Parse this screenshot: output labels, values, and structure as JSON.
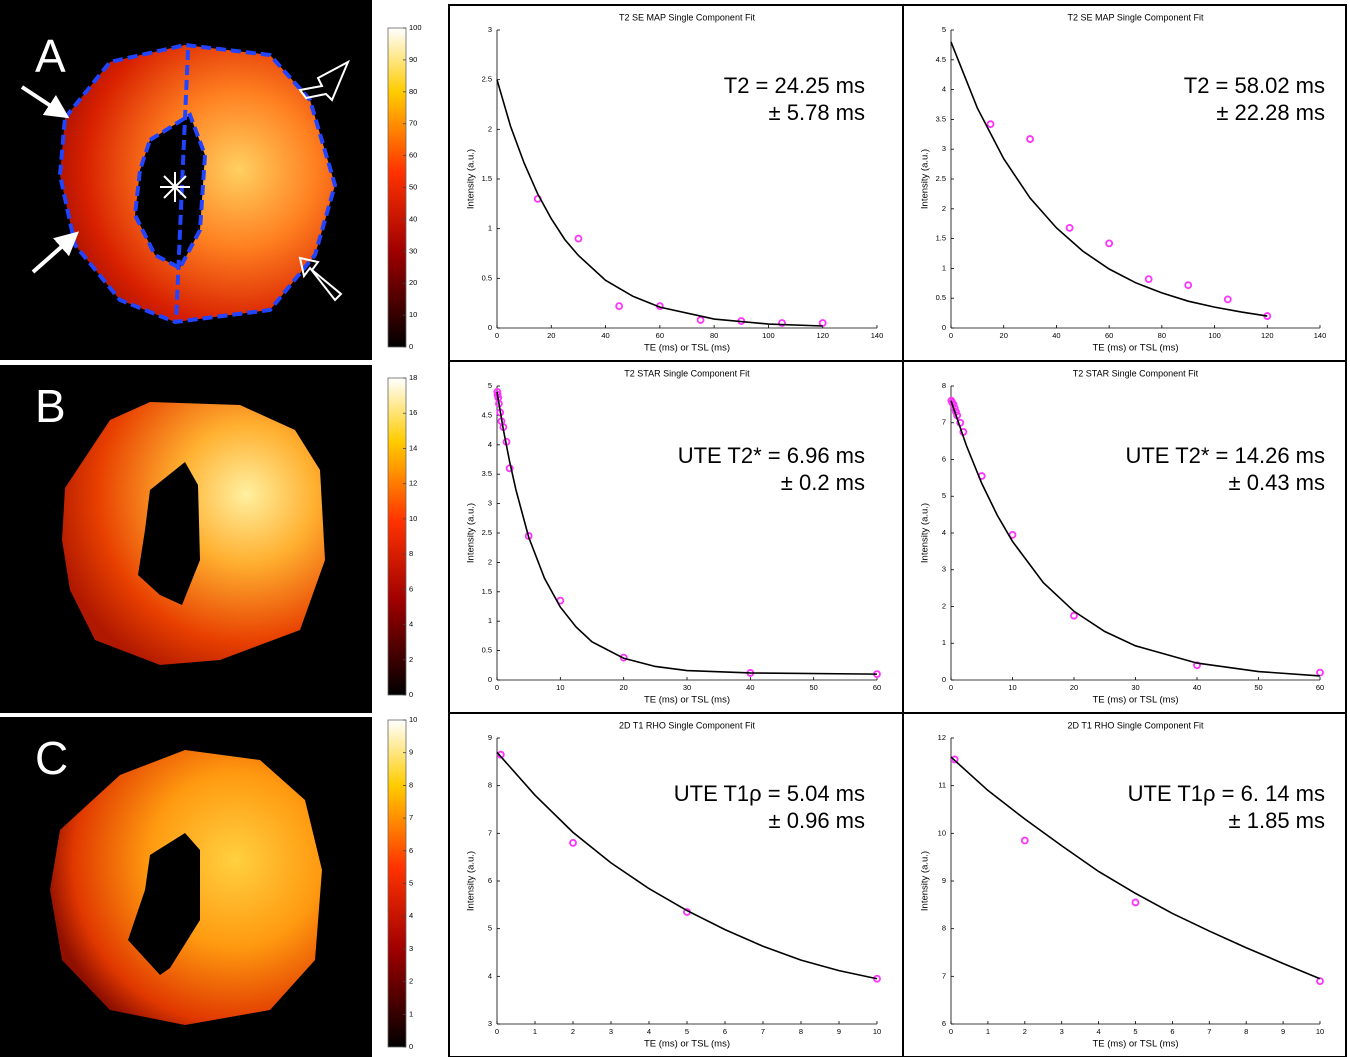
{
  "panels": [
    "A",
    "B",
    "C"
  ],
  "colorbars": [
    {
      "ylim": [
        0,
        100
      ],
      "yticks": [
        0,
        10,
        20,
        30,
        40,
        50,
        60,
        70,
        80,
        90,
        100
      ]
    },
    {
      "ylim": [
        0,
        18
      ],
      "yticks": [
        0,
        2,
        4,
        6,
        8,
        10,
        12,
        14,
        16,
        18
      ]
    },
    {
      "ylim": [
        0,
        10
      ],
      "yticks": [
        0,
        1,
        2,
        3,
        4,
        5,
        6,
        7,
        8,
        9,
        10
      ]
    }
  ],
  "chart_data": [
    {
      "type": "scatter",
      "title": "T2 SE MAP Single Component Fit",
      "x_label": "TE (ms) or TSL (ms)",
      "y_label": "Intensity (a.u.)",
      "annotations": [
        "T2 = 24.25 ms",
        "± 5.78 ms"
      ],
      "xlim": [
        0,
        140
      ],
      "xticks": [
        0,
        20,
        40,
        60,
        80,
        100,
        120,
        140
      ],
      "ylim": [
        0,
        3
      ],
      "yticks": [
        0,
        0.5,
        1,
        1.5,
        2,
        2.5,
        3
      ],
      "series": [
        {
          "color": "#ff33ff",
          "marker": "circle",
          "x": [
            15,
            30,
            45,
            60,
            75,
            90,
            105,
            120
          ],
          "values": [
            1.3,
            0.9,
            0.22,
            0.22,
            0.08,
            0.07,
            0.05,
            0.05
          ]
        },
        {
          "color": "#000000",
          "marker": "line",
          "x": [
            0,
            5,
            10,
            15,
            20,
            25,
            30,
            40,
            50,
            60,
            80,
            100,
            120
          ],
          "values": [
            2.5,
            2.03,
            1.66,
            1.35,
            1.1,
            0.89,
            0.73,
            0.48,
            0.32,
            0.21,
            0.09,
            0.04,
            0.02
          ]
        }
      ]
    },
    {
      "type": "scatter",
      "title": "T2 SE MAP Single Component Fit",
      "x_label": "TE (ms) or TSL (ms)",
      "y_label": "Intensity (a.u.)",
      "annotations": [
        "T2 = 58.02 ms",
        "± 22.28 ms"
      ],
      "xlim": [
        0,
        140
      ],
      "xticks": [
        0,
        20,
        40,
        60,
        80,
        100,
        120,
        140
      ],
      "ylim": [
        0,
        5
      ],
      "yticks": [
        0,
        0.5,
        1,
        1.5,
        2,
        2.5,
        3,
        3.5,
        4,
        4.5,
        5
      ],
      "series": [
        {
          "color": "#ff33ff",
          "marker": "circle",
          "x": [
            15,
            30,
            45,
            60,
            75,
            90,
            105,
            120
          ],
          "values": [
            3.42,
            3.17,
            1.68,
            1.42,
            0.82,
            0.72,
            0.48,
            0.2
          ]
        },
        {
          "color": "#000000",
          "marker": "line",
          "x": [
            0,
            10,
            20,
            30,
            40,
            50,
            60,
            70,
            80,
            90,
            100,
            110,
            120
          ],
          "values": [
            4.8,
            3.69,
            2.84,
            2.18,
            1.68,
            1.29,
            0.99,
            0.76,
            0.59,
            0.45,
            0.35,
            0.27,
            0.2
          ]
        }
      ]
    },
    {
      "type": "scatter",
      "title": "T2 STAR Single Component Fit",
      "x_label": "TE (ms) or TSL (ms)",
      "y_label": "Intensity (a.u.)",
      "annotations": [
        "UTE T2* = 6.96 ms",
        "± 0.2 ms"
      ],
      "xlim": [
        0,
        60
      ],
      "xticks": [
        0,
        10,
        20,
        30,
        40,
        50,
        60
      ],
      "ylim": [
        0,
        5
      ],
      "yticks": [
        0,
        0.5,
        1,
        1.5,
        2,
        2.5,
        3,
        3.5,
        4,
        4.5,
        5
      ],
      "series": [
        {
          "color": "#ff33ff",
          "marker": "circle",
          "x": [
            0.05,
            0.1,
            0.2,
            0.3,
            0.5,
            0.7,
            1,
            1.5,
            2,
            5,
            10,
            20,
            40,
            60
          ],
          "values": [
            4.9,
            4.85,
            4.8,
            4.7,
            4.55,
            4.4,
            4.3,
            4.05,
            3.6,
            2.45,
            1.35,
            0.38,
            0.12,
            0.1
          ]
        },
        {
          "color": "#000000",
          "marker": "line",
          "x": [
            0,
            1,
            2,
            3,
            5,
            7.5,
            10,
            12.5,
            15,
            20,
            25,
            30,
            40,
            60
          ],
          "values": [
            4.9,
            4.26,
            3.71,
            3.23,
            2.43,
            1.73,
            1.24,
            0.9,
            0.65,
            0.37,
            0.23,
            0.16,
            0.12,
            0.1
          ]
        }
      ]
    },
    {
      "type": "scatter",
      "title": "T2 STAR Single Component Fit",
      "x_label": "TE (ms) or TSL (ms)",
      "y_label": "Intensity (a.u.)",
      "annotations": [
        "UTE T2* = 14.26 ms",
        "± 0.43 ms"
      ],
      "xlim": [
        0,
        60
      ],
      "xticks": [
        0,
        10,
        20,
        30,
        40,
        50,
        60
      ],
      "ylim": [
        0,
        8
      ],
      "yticks": [
        0,
        1,
        2,
        3,
        4,
        5,
        6,
        7,
        8
      ],
      "series": [
        {
          "color": "#ff33ff",
          "marker": "circle",
          "x": [
            0.05,
            0.2,
            0.4,
            0.6,
            0.8,
            1,
            1.5,
            2,
            5,
            10,
            20,
            40,
            60
          ],
          "values": [
            7.6,
            7.55,
            7.5,
            7.4,
            7.3,
            7.2,
            7.0,
            6.75,
            5.55,
            3.95,
            1.75,
            0.4,
            0.2
          ]
        },
        {
          "color": "#000000",
          "marker": "line",
          "x": [
            0,
            2.5,
            5,
            7.5,
            10,
            15,
            20,
            25,
            30,
            40,
            50,
            60
          ],
          "values": [
            7.6,
            6.38,
            5.35,
            4.49,
            3.77,
            2.65,
            1.87,
            1.32,
            0.93,
            0.46,
            0.23,
            0.11
          ]
        }
      ]
    },
    {
      "type": "scatter",
      "title": "2D T1 RHO Single Component Fit",
      "x_label": "TE (ms) or TSL (ms)",
      "y_label": "Intensity (a.u.)",
      "annotations": [
        "UTE T1ρ = 5.04 ms",
        "± 0.96 ms"
      ],
      "xlim": [
        0,
        10
      ],
      "xticks": [
        0,
        1,
        2,
        3,
        4,
        5,
        6,
        7,
        8,
        9,
        10
      ],
      "ylim": [
        3,
        9
      ],
      "yticks": [
        3,
        4,
        5,
        6,
        7,
        8,
        9
      ],
      "series": [
        {
          "color": "#ff33ff",
          "marker": "circle",
          "x": [
            0.1,
            2,
            5,
            10
          ],
          "values": [
            8.65,
            6.8,
            5.35,
            3.95
          ]
        },
        {
          "color": "#000000",
          "marker": "line",
          "x": [
            0,
            1,
            2,
            3,
            4,
            5,
            6,
            7,
            8,
            9,
            10
          ],
          "values": [
            8.7,
            7.8,
            7.02,
            6.38,
            5.84,
            5.38,
            4.98,
            4.63,
            4.34,
            4.12,
            3.95
          ]
        }
      ]
    },
    {
      "type": "scatter",
      "title": "2D T1 RHO Single Component Fit",
      "x_label": "TE (ms) or TSL (ms)",
      "y_label": "Intensity (a.u.)",
      "annotations": [
        "UTE T1ρ = 6. 14 ms",
        "± 1.85 ms"
      ],
      "xlim": [
        0,
        10
      ],
      "xticks": [
        0,
        1,
        2,
        3,
        4,
        5,
        6,
        7,
        8,
        9,
        10
      ],
      "ylim": [
        6,
        12
      ],
      "yticks": [
        6,
        7,
        8,
        9,
        10,
        11,
        12
      ],
      "series": [
        {
          "color": "#ff33ff",
          "marker": "circle",
          "x": [
            0.1,
            2,
            5,
            10
          ],
          "values": [
            11.55,
            9.85,
            8.55,
            6.9
          ]
        },
        {
          "color": "#000000",
          "marker": "line",
          "x": [
            0,
            1,
            2,
            3,
            4,
            5,
            6,
            7,
            8,
            9,
            10
          ],
          "values": [
            11.6,
            10.9,
            10.3,
            9.74,
            9.2,
            8.74,
            8.32,
            7.95,
            7.6,
            7.27,
            6.95
          ]
        }
      ]
    }
  ]
}
